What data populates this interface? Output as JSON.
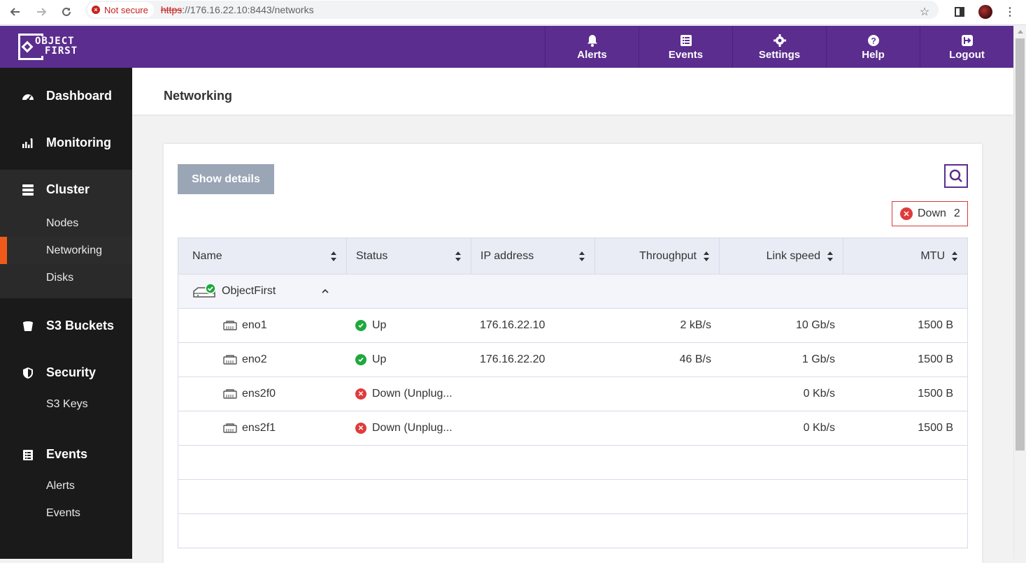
{
  "browser": {
    "security_label": "Not secure",
    "url_scheme": "https",
    "url_rest": "://176.16.22.10:8443/networks"
  },
  "header": {
    "nav": [
      {
        "label": "Alerts",
        "icon": "bell-icon"
      },
      {
        "label": "Events",
        "icon": "list-icon"
      },
      {
        "label": "Settings",
        "icon": "gear-icon"
      },
      {
        "label": "Help",
        "icon": "question-icon"
      },
      {
        "label": "Logout",
        "icon": "logout-icon"
      }
    ],
    "logo_line1": "OBJECT",
    "logo_line2": "FIRST"
  },
  "sidebar": {
    "dashboard": "Dashboard",
    "monitoring": "Monitoring",
    "cluster": "Cluster",
    "nodes": "Nodes",
    "networking": "Networking",
    "disks": "Disks",
    "s3_buckets": "S3 Buckets",
    "security": "Security",
    "s3_keys": "S3 Keys",
    "events": "Events",
    "alerts": "Alerts",
    "events_sub": "Events"
  },
  "page": {
    "title": "Networking",
    "show_details": "Show details",
    "down_filter": {
      "label": "Down",
      "count": "2"
    }
  },
  "table": {
    "columns": [
      "Name",
      "Status",
      "IP address",
      "Throughput",
      "Link speed",
      "MTU"
    ],
    "group": "ObjectFirst",
    "rows": [
      {
        "name": "eno1",
        "status": "Up",
        "ok": true,
        "ip": "176.16.22.10",
        "throughput": "2 kB/s",
        "speed": "10 Gb/s",
        "mtu": "1500 B"
      },
      {
        "name": "eno2",
        "status": "Up",
        "ok": true,
        "ip": "176.16.22.20",
        "throughput": "46 B/s",
        "speed": "1 Gb/s",
        "mtu": "1500 B"
      },
      {
        "name": "ens2f0",
        "status": "Down (Unplug...",
        "ok": false,
        "ip": "",
        "throughput": "",
        "speed": "0 Kb/s",
        "mtu": "1500 B"
      },
      {
        "name": "ens2f1",
        "status": "Down (Unplug...",
        "ok": false,
        "ip": "",
        "throughput": "",
        "speed": "0 Kb/s",
        "mtu": "1500 B"
      }
    ]
  },
  "colors": {
    "brand": "#5b2d8e",
    "sidebar": "#1a1a1a",
    "active_marker": "#ef5a1b",
    "status_up": "#1ea83c",
    "status_down": "#e03b3b"
  }
}
